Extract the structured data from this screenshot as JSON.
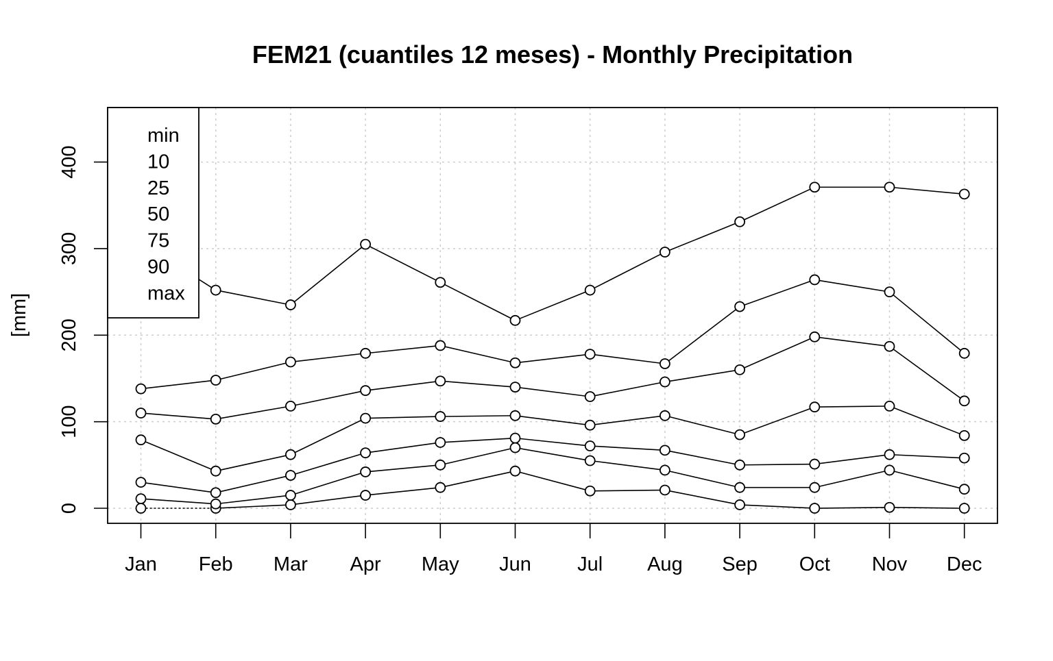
{
  "chart_data": {
    "type": "line",
    "title": "FEM21 (cuantiles 12 meses) - Monthly Precipitation",
    "xlabel": "",
    "ylabel": "[mm]",
    "categories": [
      "Jan",
      "Feb",
      "Mar",
      "Apr",
      "May",
      "Jun",
      "Jul",
      "Aug",
      "Sep",
      "Oct",
      "Nov",
      "Dec"
    ],
    "ylim": [
      -18,
      462
    ],
    "yticks": [
      0,
      100,
      200,
      300,
      400
    ],
    "grid": true,
    "legend_position": "top-left",
    "series": [
      {
        "name": "min",
        "values": [
          0,
          0,
          4,
          15,
          24,
          43,
          20,
          21,
          4,
          0,
          1,
          0
        ]
      },
      {
        "name": "10",
        "values": [
          11,
          5,
          15,
          42,
          50,
          70,
          55,
          44,
          24,
          24,
          44,
          22
        ]
      },
      {
        "name": "25",
        "values": [
          30,
          18,
          38,
          64,
          76,
          81,
          72,
          67,
          50,
          51,
          62,
          58
        ]
      },
      {
        "name": "50",
        "values": [
          79,
          43,
          62,
          104,
          106,
          107,
          96,
          107,
          85,
          117,
          118,
          84
        ]
      },
      {
        "name": "75",
        "values": [
          110,
          103,
          118,
          136,
          147,
          140,
          129,
          146,
          160,
          198,
          187,
          124
        ]
      },
      {
        "name": "90",
        "values": [
          138,
          148,
          169,
          179,
          188,
          168,
          178,
          167,
          233,
          264,
          250,
          179
        ]
      },
      {
        "name": "max",
        "values": [
          307,
          252,
          235,
          305,
          261,
          217,
          252,
          296,
          331,
          371,
          371,
          363
        ]
      }
    ]
  }
}
